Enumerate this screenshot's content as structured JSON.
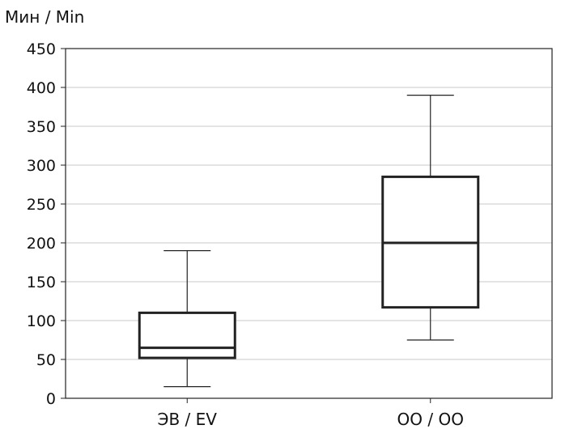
{
  "chart_data": {
    "type": "boxplot",
    "ylabel": "Мин / Min",
    "ylim": [
      0,
      450
    ],
    "yticks": [
      0,
      50,
      100,
      150,
      200,
      250,
      300,
      350,
      400,
      450
    ],
    "grid": true,
    "categories": [
      "ЭВ / EV",
      "ОО / OO"
    ],
    "boxes": [
      {
        "category": "ЭВ / EV",
        "whisker_low": 15,
        "q1": 52,
        "median": 65,
        "q3": 110,
        "whisker_high": 190
      },
      {
        "category": "ОО / OO",
        "whisker_low": 75,
        "q1": 117,
        "median": 200,
        "q3": 285,
        "whisker_high": 390
      }
    ]
  }
}
